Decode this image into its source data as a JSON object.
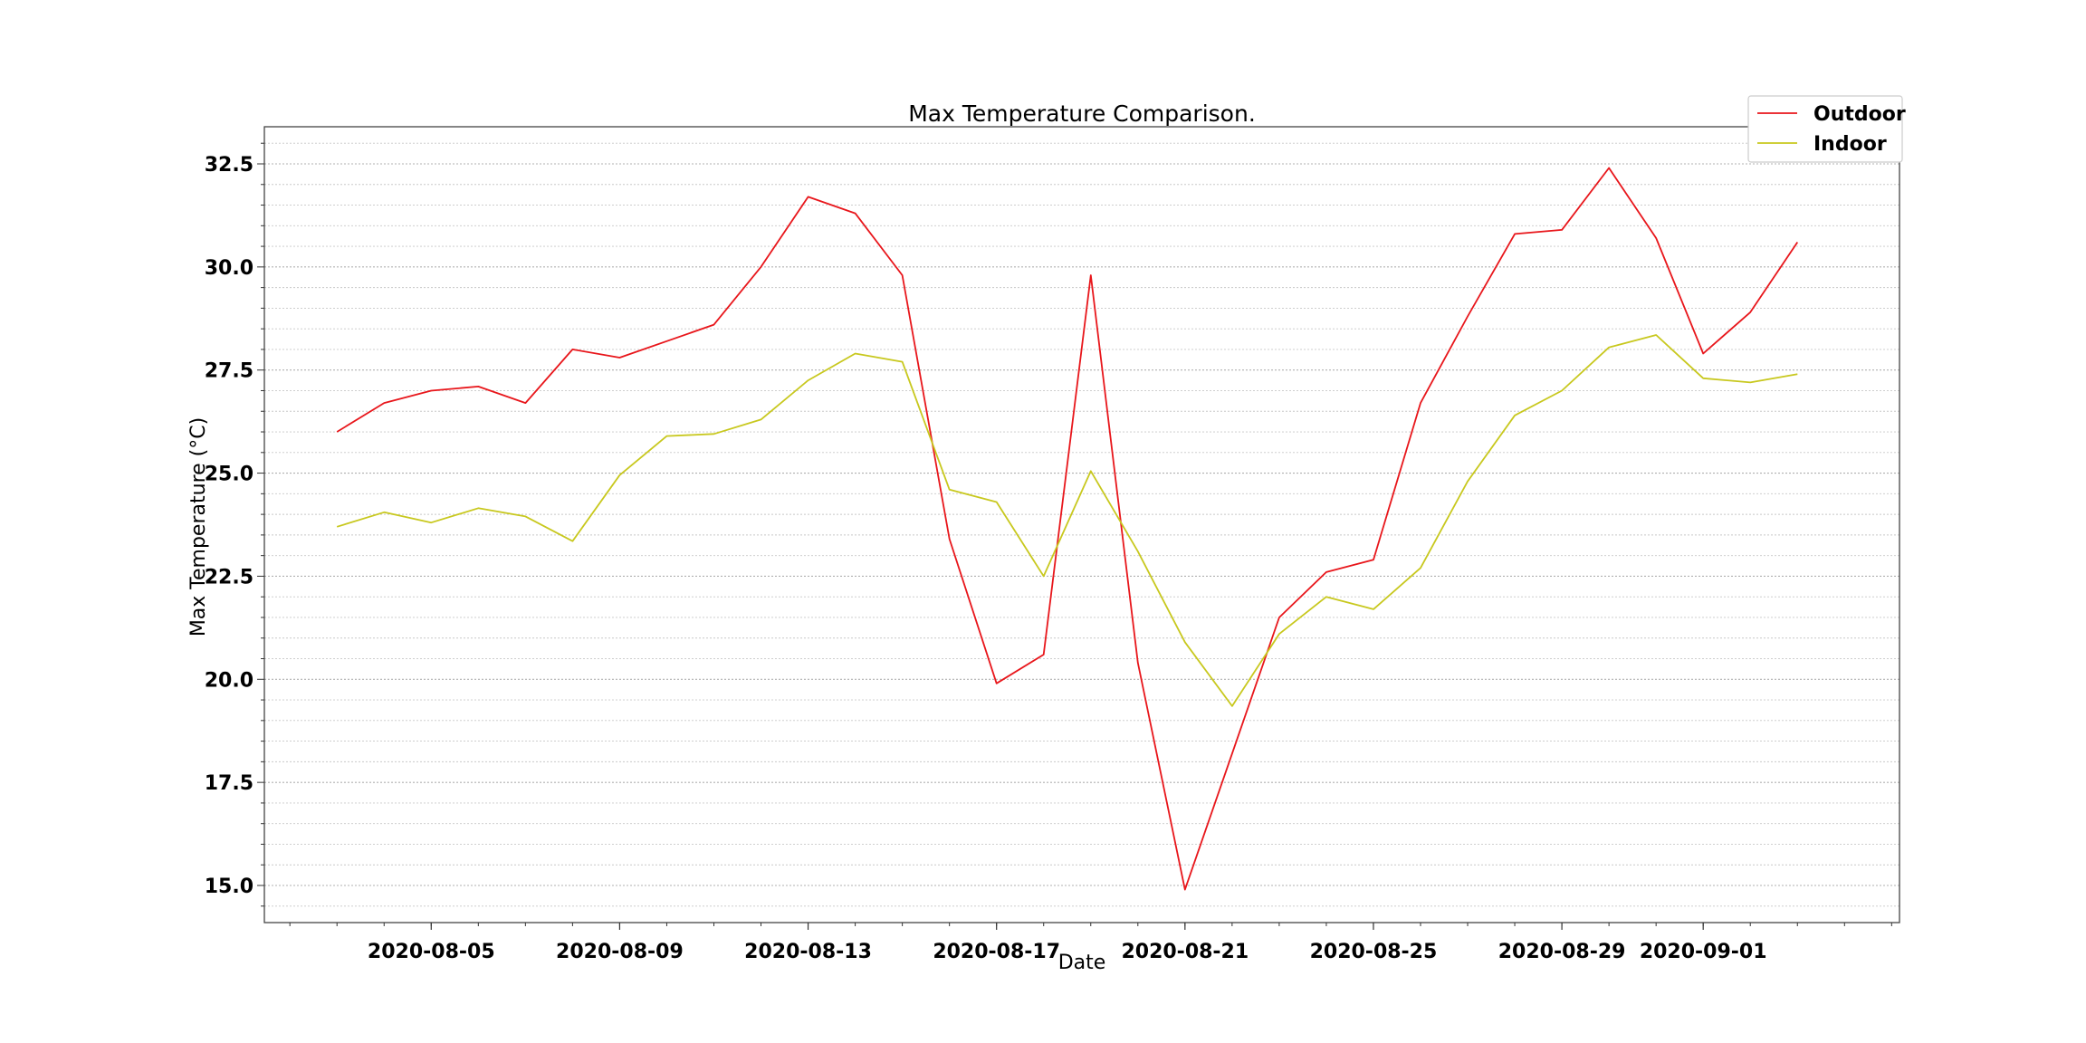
{
  "chart_data": {
    "type": "line",
    "title": "Max Temperature Comparison.",
    "xlabel": "Date",
    "ylabel": "Max Temperature (°C)",
    "x": [
      "2020-08-03",
      "2020-08-04",
      "2020-08-05",
      "2020-08-06",
      "2020-08-07",
      "2020-08-08",
      "2020-08-09",
      "2020-08-10",
      "2020-08-11",
      "2020-08-12",
      "2020-08-13",
      "2020-08-14",
      "2020-08-15",
      "2020-08-16",
      "2020-08-17",
      "2020-08-18",
      "2020-08-19",
      "2020-08-20",
      "2020-08-21",
      "2020-08-22",
      "2020-08-23",
      "2020-08-24",
      "2020-08-25",
      "2020-08-26",
      "2020-08-27",
      "2020-08-28",
      "2020-08-29",
      "2020-08-30",
      "2020-08-31",
      "2020-09-01",
      "2020-09-02",
      "2020-09-03"
    ],
    "xlim": [
      "2020-08-01T11:00",
      "2020-09-05T04:00"
    ],
    "ylim": [
      14.1,
      33.4
    ],
    "x_ticks": [
      "2020-08-05",
      "2020-08-09",
      "2020-08-13",
      "2020-08-17",
      "2020-08-21",
      "2020-08-25",
      "2020-08-29",
      "2020-09-01"
    ],
    "y_ticks": [
      "15.0",
      "17.5",
      "20.0",
      "22.5",
      "25.0",
      "27.5",
      "30.0",
      "32.5"
    ],
    "grid": true,
    "legend_position": "top-right",
    "series": [
      {
        "name": "Outdoor",
        "color": "#e8161b",
        "values": [
          26.0,
          26.7,
          27.0,
          27.1,
          26.7,
          28.0,
          27.8,
          28.2,
          28.6,
          30.0,
          31.7,
          31.3,
          29.8,
          23.4,
          19.9,
          20.6,
          29.8,
          20.4,
          14.9,
          18.2,
          21.5,
          22.6,
          22.9,
          26.7,
          28.8,
          30.8,
          30.9,
          32.4,
          30.7,
          27.9,
          28.9,
          30.6
        ]
      },
      {
        "name": "Indoor",
        "color": "#c8c81e",
        "values": [
          23.7,
          24.05,
          23.8,
          24.15,
          23.95,
          23.35,
          24.95,
          25.9,
          25.95,
          26.3,
          27.25,
          27.9,
          27.7,
          24.6,
          24.3,
          22.5,
          25.05,
          23.1,
          20.9,
          19.35,
          21.1,
          22.0,
          21.7,
          22.7,
          24.8,
          26.4,
          27.0,
          28.05,
          28.35,
          27.3,
          27.2,
          27.4
        ]
      }
    ]
  }
}
